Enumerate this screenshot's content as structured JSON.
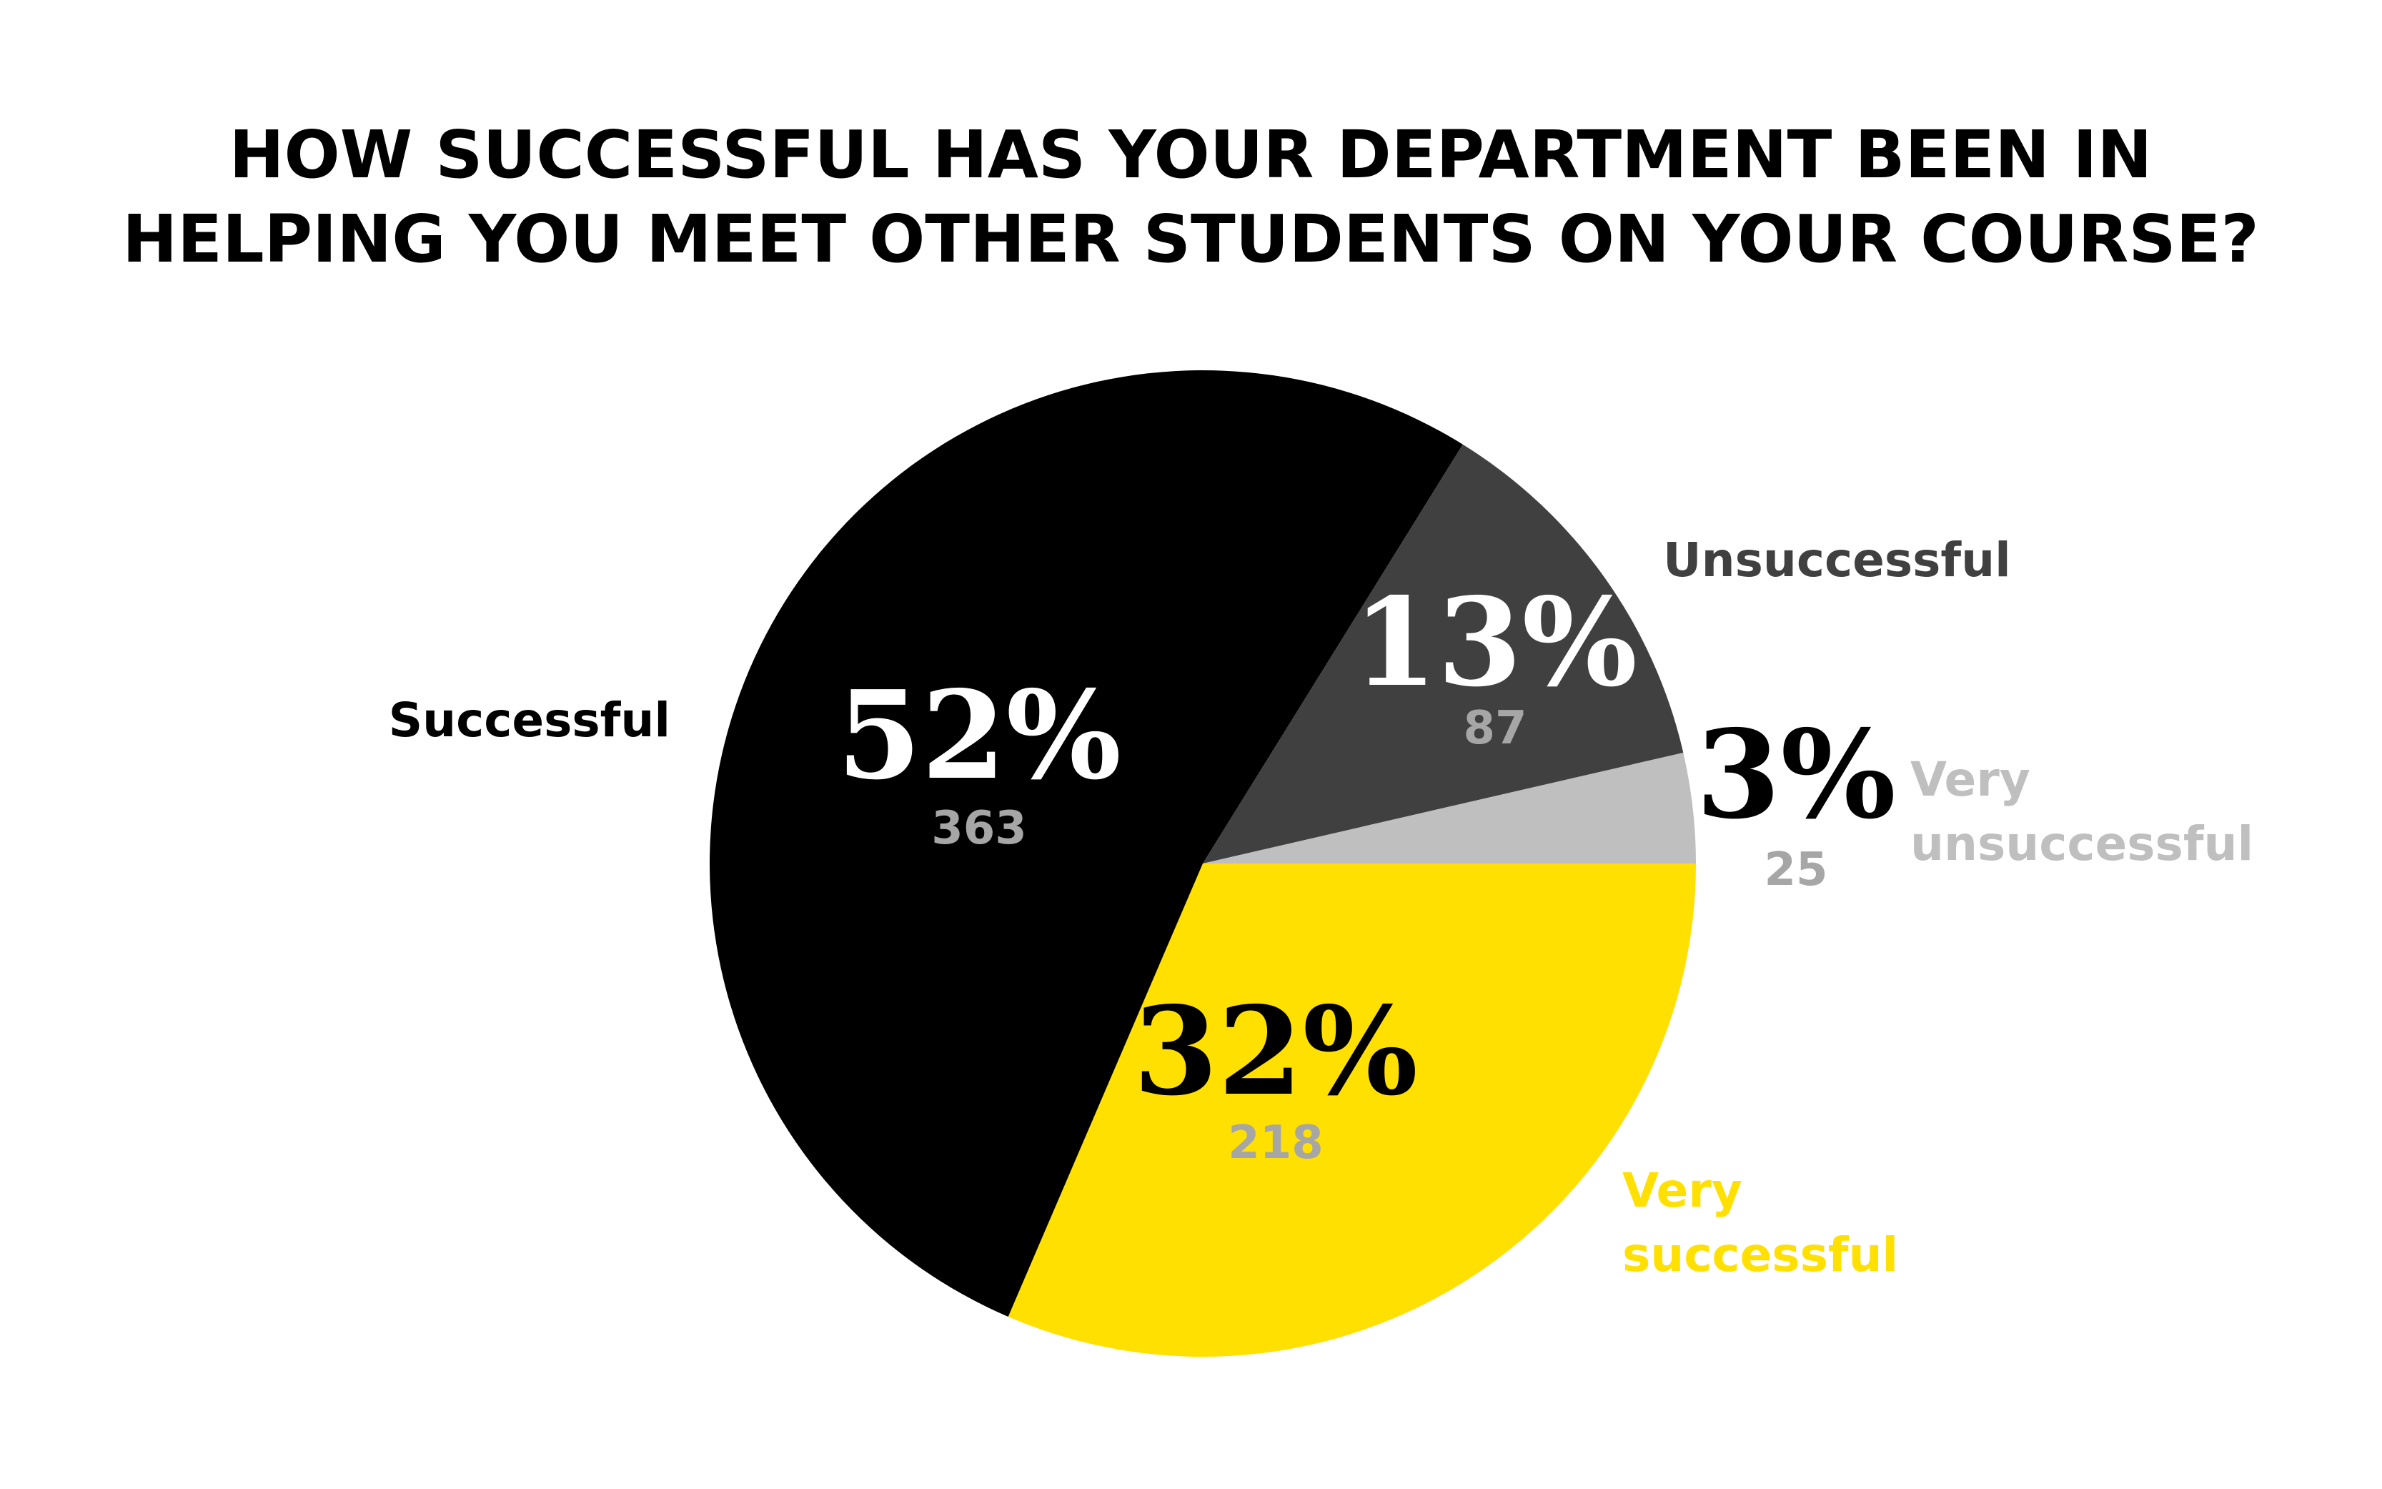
{
  "chart_data": {
    "type": "pie",
    "title_lines": [
      "HOW SUCCESSFUL HAS YOUR DEPARTMENT BEEN IN",
      "HELPING YOU MEET OTHER STUDENTS ON YOUR COURSE?"
    ],
    "start_angle_deg": 0,
    "direction": "clockwise",
    "slices": [
      {
        "key": "very_successful",
        "label_lines": [
          "Very",
          "successful"
        ],
        "percent_label": "32%",
        "count_label": "218",
        "value": 218,
        "percent": 32,
        "color": "#FFE000",
        "pct_color": "#000000",
        "count_color": "#A6A6A6",
        "label_color": "#FFE000"
      },
      {
        "key": "successful",
        "label_lines": [
          "Successful"
        ],
        "percent_label": "52%",
        "count_label": "363",
        "value": 363,
        "percent": 52,
        "color": "#000000",
        "pct_color": "#FFFFFF",
        "count_color": "#A6A6A6",
        "label_color": "#000000"
      },
      {
        "key": "unsuccessful",
        "label_lines": [
          "Unsuccessful"
        ],
        "percent_label": "13%",
        "count_label": "87",
        "value": 87,
        "percent": 13,
        "color": "#404040",
        "pct_color": "#FFFFFF",
        "count_color": "#A6A6A6",
        "label_color": "#404040"
      },
      {
        "key": "very_unsuccessful",
        "label_lines": [
          "Very",
          "unsuccessful"
        ],
        "percent_label": "3%",
        "count_label": "25",
        "value": 25,
        "percent": 3,
        "color": "#BFBFBF",
        "pct_color": "#000000",
        "count_color": "#A6A6A6",
        "label_color": "#BFBFBF"
      }
    ]
  }
}
